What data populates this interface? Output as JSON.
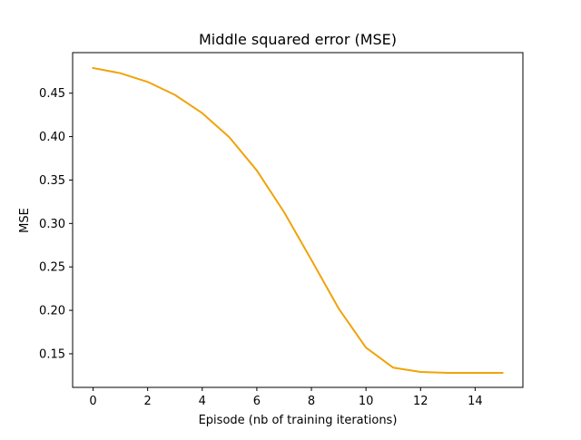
{
  "chart_data": {
    "type": "line",
    "title": "Middle squared error (MSE)",
    "xlabel": "Episode (nb of training iterations)",
    "ylabel": "MSE",
    "x": [
      0,
      1,
      2,
      3,
      4,
      5,
      6,
      7,
      8,
      9,
      10,
      11,
      12,
      13,
      14,
      15
    ],
    "series": [
      {
        "values": [
          0.479,
          0.473,
          0.463,
          0.448,
          0.427,
          0.399,
          0.361,
          0.313,
          0.258,
          0.202,
          0.157,
          0.134,
          0.129,
          0.128,
          0.128,
          0.128
        ],
        "color": "#f0a30a"
      }
    ],
    "xticks": [
      0,
      2,
      4,
      6,
      8,
      10,
      12,
      14
    ],
    "xtick_labels": [
      "0",
      "2",
      "4",
      "6",
      "8",
      "10",
      "12",
      "14"
    ],
    "yticks": [
      0.15,
      0.2,
      0.25,
      0.3,
      0.35,
      0.4,
      0.45
    ],
    "ytick_labels": [
      "0.15",
      "0.20",
      "0.25",
      "0.30",
      "0.35",
      "0.40",
      "0.45"
    ],
    "xlim": [
      -0.75,
      15.75
    ],
    "ylim": [
      0.1113,
      0.4967
    ],
    "grid": false,
    "legend": "none"
  }
}
